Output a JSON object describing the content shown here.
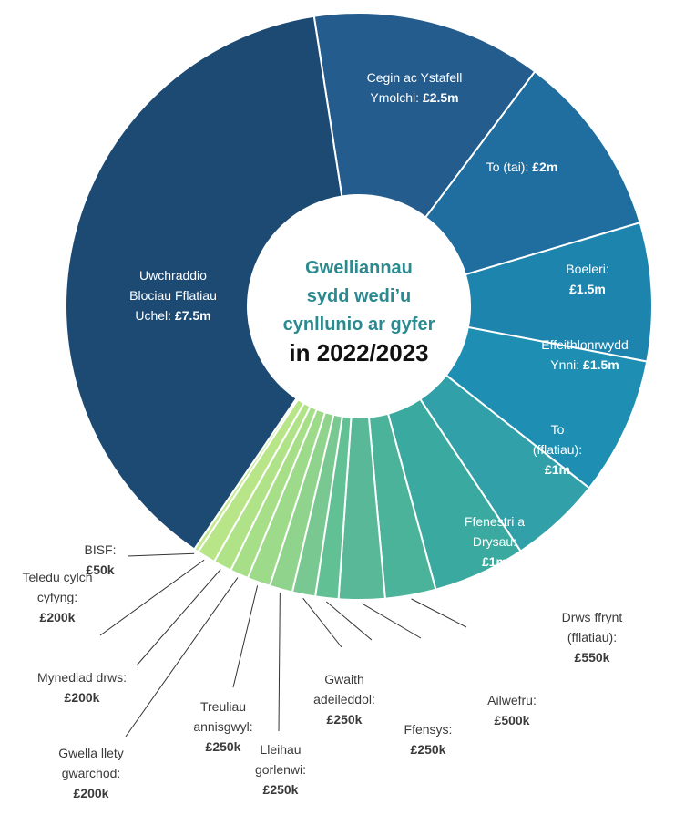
{
  "chart_data": {
    "type": "donut",
    "title": [
      "Gwelliannau",
      "sydd wedi’u",
      "cynllunio ar gyfer"
    ],
    "subtitle": "in 2022/2023",
    "categories": [
      [
        "Cegin ac Ystafell",
        "Ymolchi:"
      ],
      [
        "To (tai):"
      ],
      [
        "Boeleri:"
      ],
      [
        "Effeithlonrwydd",
        "Ynni:"
      ],
      [
        "To",
        "(fflatiau):"
      ],
      [
        "Ffenestri a",
        "Drysau:"
      ],
      [
        "Drws ffrynt",
        "(fflatiau):"
      ],
      [
        "Ailwefru:"
      ],
      [
        "Ffensys:"
      ],
      [
        "Gwaith",
        "adeileddol:"
      ],
      [
        "Lleihau",
        "gorlenwi:"
      ],
      [
        "Treuliau",
        "annisgwyl:"
      ],
      [
        "Gwella llety",
        "gwarchod:"
      ],
      [
        "Mynediad drws:"
      ],
      [
        "Teledu cylch",
        "cyfyng:"
      ],
      [
        "BISF:"
      ],
      [
        "Uwchraddio",
        "Blociau Fflatiau",
        "Uchel:"
      ]
    ],
    "values": [
      2500000,
      2000000,
      1500000,
      1500000,
      1000000,
      1000000,
      550000,
      500000,
      250000,
      250000,
      250000,
      250000,
      200000,
      200000,
      200000,
      50000,
      7500000
    ],
    "value_labels": [
      "£2.5m",
      "£2m",
      "£1.5m",
      "£1.5m",
      "£1m",
      "£1m",
      "£550k",
      "£500k",
      "£250k",
      "£250k",
      "£250k",
      "£250k",
      "£200k",
      "£200k",
      "£200k",
      "£50k",
      "£7.5m"
    ],
    "colors": [
      "#245c8e",
      "#1f6e9f",
      "#1d84ae",
      "#1e8fb2",
      "#31a0a9",
      "#3aa99f",
      "#4bb39a",
      "#58b897",
      "#62c095",
      "#79c891",
      "#8fd38c",
      "#9dda8a",
      "#a7de88",
      "#b0e287",
      "#b9e589",
      "#c4e991",
      "#1d4a73"
    ]
  }
}
